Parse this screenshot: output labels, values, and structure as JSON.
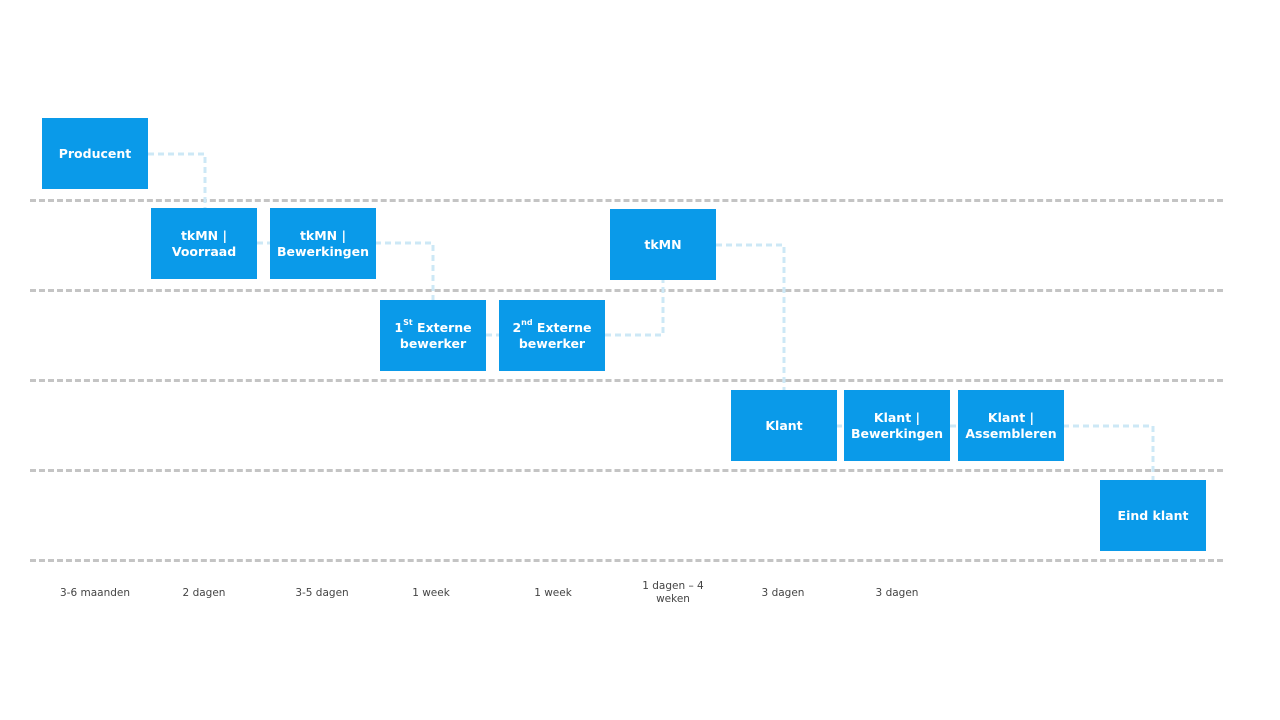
{
  "nodes": {
    "producent": "Producent",
    "tkmn_voorraad": [
      "tkMN |",
      "Voorraad"
    ],
    "tkmn_bewerkingen": [
      "tkMN |",
      "Bewerkingen"
    ],
    "ext1": {
      "num": "1",
      "sup": "St",
      "rest": " Externe",
      "line2": "bewerker"
    },
    "ext2": {
      "num": "2",
      "sup": "nd",
      "rest": " Externe",
      "line2": "bewerker"
    },
    "tkmn": "tkMN",
    "klant": "Klant",
    "klant_bewerkingen": [
      "Klant |",
      "Bewerkingen"
    ],
    "klant_assembleren": [
      "Klant |",
      "Assembleren"
    ],
    "eind_klant": "Eind klant"
  },
  "durations": [
    "3-6 maanden",
    "2 dagen",
    "3-5 dagen",
    "1 week",
    "1 week",
    [
      "1 dagen – 4",
      "weken"
    ],
    "3 dagen",
    "3 dagen"
  ],
  "colors": {
    "box": "#0a9ae9",
    "connector": "#cde8f6",
    "lane": "#c4c4c4",
    "duration_text": "#444444"
  }
}
